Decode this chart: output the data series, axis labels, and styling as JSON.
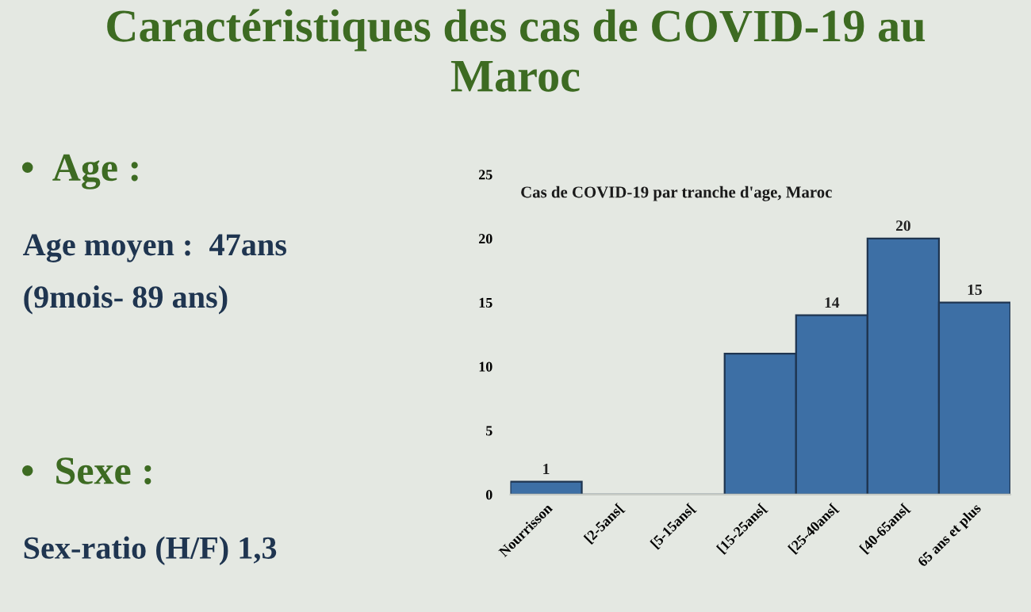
{
  "chart_data": {
    "type": "bar",
    "title": "Caractéristiques des cas de COVID-19 au\nMaroc",
    "subtitle": "Cas de COVID-19 par tranche d'age, Maroc",
    "categories": [
      "Nourrisson",
      "[2-5ans[",
      "[5-15ans[",
      "[15-25ans[",
      "[25-40ans[",
      "[40-65ans[",
      "65 ans et plus"
    ],
    "values": [
      1,
      0,
      0,
      11,
      14,
      20,
      15
    ],
    "value_labels": [
      "1",
      null,
      null,
      null,
      "14",
      "20",
      "15"
    ],
    "color": "#3d6fa5",
    "ylim": [
      0,
      25
    ],
    "yticks": [
      0,
      5,
      10,
      15,
      20,
      25
    ],
    "grid": false,
    "legend": false,
    "annotations": [
      "•  Age :",
      "Age moyen :  47ans",
      "(9mois- 89 ans)",
      "•  Sexe :",
      "Sex-ratio (H/F) 1,3"
    ]
  }
}
